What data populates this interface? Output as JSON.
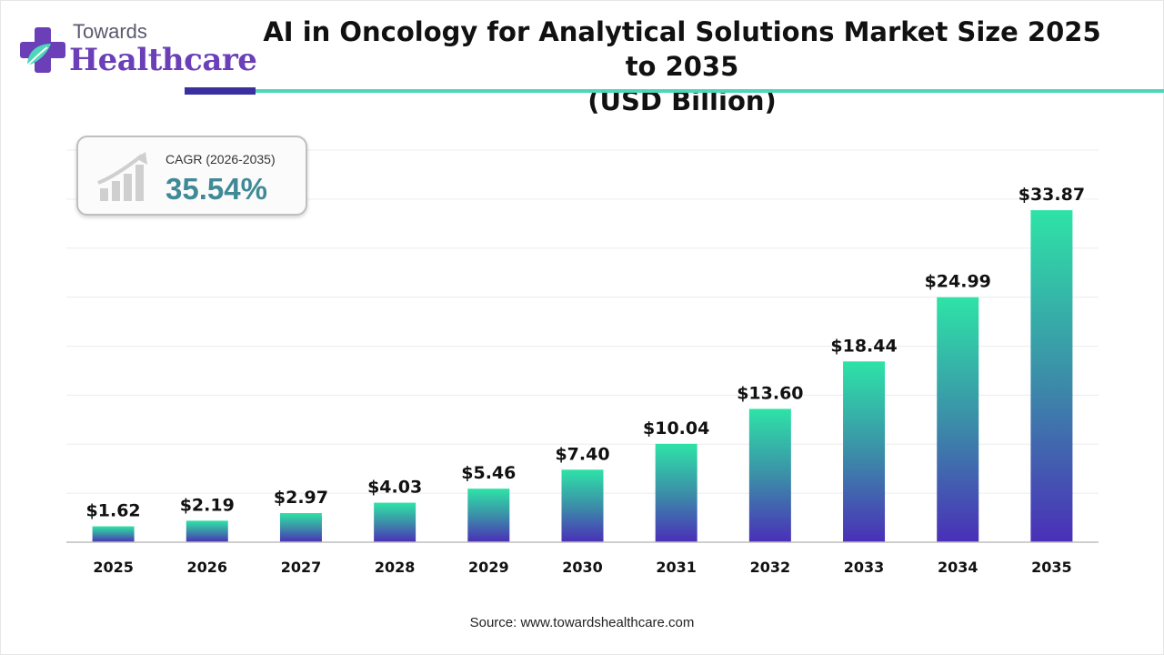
{
  "header": {
    "logo_small": "Towards",
    "logo_big": "Healthcare",
    "title_line1": "AI in Oncology for Analytical Solutions Market Size 2025 to 2035",
    "title_line2": "(USD Billion)"
  },
  "cagr": {
    "label": "CAGR (2026-2035)",
    "value": "35.54%",
    "icon": "growth-chart-icon"
  },
  "footer": {
    "source": "Source: www.towardshealthcare.com"
  },
  "colors": {
    "bar_top": "#2ee3a7",
    "bar_bottom": "#4a2fb8",
    "accent_dark": "#3a2f9e",
    "accent_teal": "#4ed6b8",
    "logo_purple": "#6a3fb8",
    "cagr_value": "#3f8a96"
  },
  "chart_data": {
    "type": "bar",
    "title": "AI in Oncology for Analytical Solutions Market Size 2025 to 2035 (USD Billion)",
    "xlabel": "",
    "ylabel": "",
    "ylim": [
      0,
      40
    ],
    "grid": true,
    "categories": [
      "2025",
      "2026",
      "2027",
      "2028",
      "2029",
      "2030",
      "2031",
      "2032",
      "2033",
      "2034",
      "2035"
    ],
    "values": [
      1.62,
      2.19,
      2.97,
      4.03,
      5.46,
      7.4,
      10.04,
      13.6,
      18.44,
      24.99,
      33.87
    ],
    "labels": [
      "$1.62",
      "$2.19",
      "$2.97",
      "$4.03",
      "$5.46",
      "$7.40",
      "$10.04",
      "$13.60",
      "$18.44",
      "$24.99",
      "$33.87"
    ]
  }
}
